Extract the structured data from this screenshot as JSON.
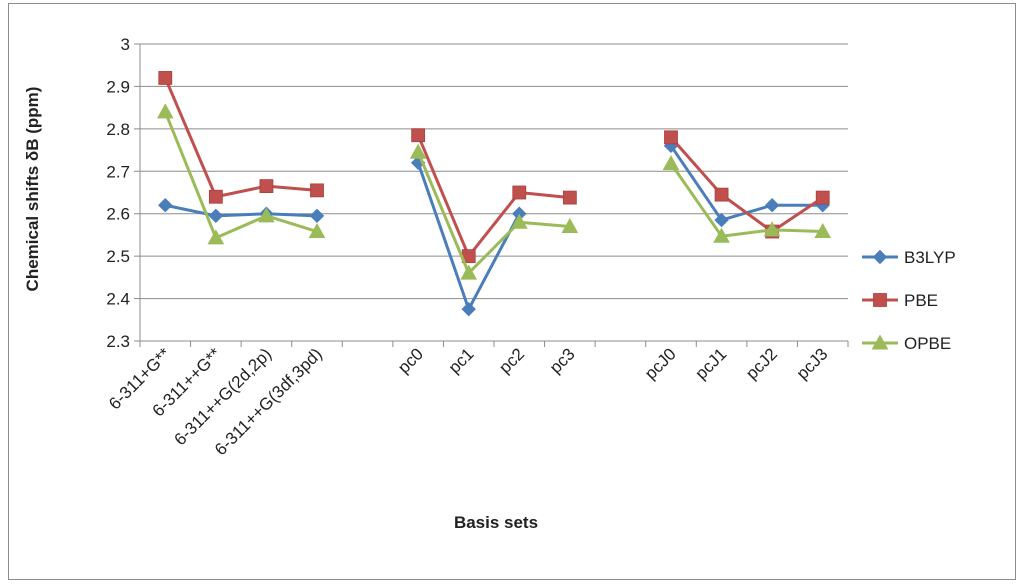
{
  "chart_data": {
    "type": "line",
    "xlabel": "Basis sets",
    "ylabel": "Chemical shifts δB (ppm)",
    "ylim": [
      2.3,
      3.0
    ],
    "ytick_step": 0.1,
    "grid": "horizontal",
    "legend_position": "right",
    "categories": [
      "6-311+G**",
      "6-311++G**",
      "6-311++G(2d,2p)",
      "6-311++G(3df,3pd)",
      "",
      "pc0",
      "pc1",
      "pc2",
      "pc3",
      "",
      "pcJ0",
      "pcJ1",
      "pcJ2",
      "pcJ3"
    ],
    "series": [
      {
        "name": "B3LYP",
        "color": "#4a7ebb",
        "marker": "diamond",
        "values": [
          2.62,
          2.595,
          2.6,
          2.595,
          null,
          2.72,
          2.375,
          2.6,
          null,
          null,
          2.76,
          2.585,
          2.62,
          2.62
        ]
      },
      {
        "name": "PBE",
        "color": "#c0504d",
        "marker": "square",
        "values": [
          2.92,
          2.64,
          2.665,
          2.655,
          null,
          2.785,
          2.5,
          2.65,
          2.638,
          null,
          2.78,
          2.645,
          2.558,
          2.638
        ]
      },
      {
        "name": "OPBE",
        "color": "#9bbb59",
        "marker": "triangle",
        "values": [
          2.84,
          2.543,
          2.595,
          2.558,
          null,
          2.745,
          2.46,
          2.58,
          2.57,
          null,
          2.718,
          2.547,
          2.562,
          2.558
        ]
      }
    ]
  }
}
